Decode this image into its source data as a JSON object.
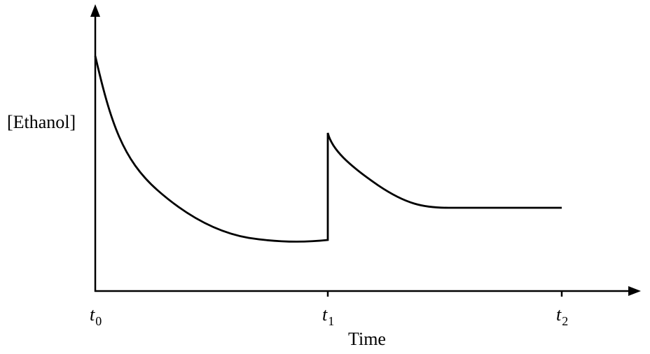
{
  "y_axis_label": "[Ethanol]",
  "x_axis_label": "Time",
  "x_ticks": [
    {
      "symbol": "t",
      "subscript": "0"
    },
    {
      "symbol": "t",
      "subscript": "1"
    },
    {
      "symbol": "t",
      "subscript": "2"
    }
  ]
}
